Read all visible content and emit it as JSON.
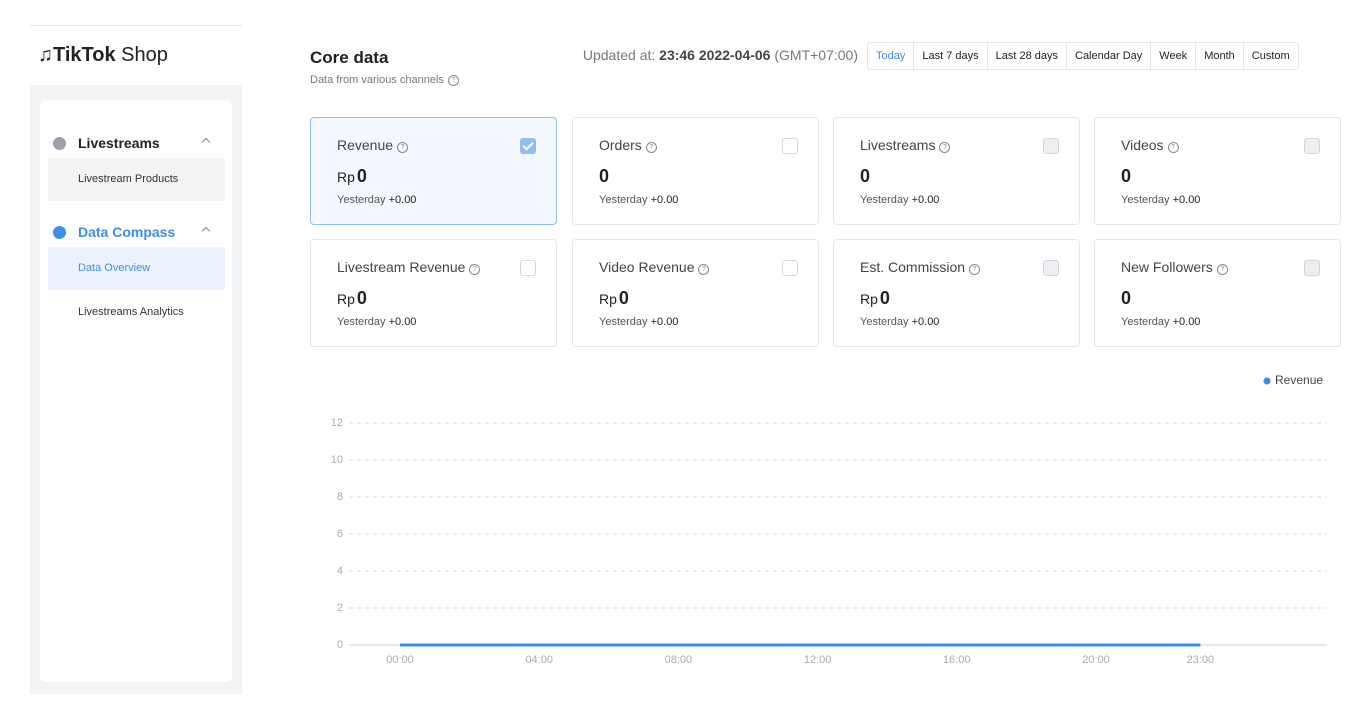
{
  "sidebar": {
    "logo_brand": "TikTok",
    "logo_suffix": "Shop",
    "groups": [
      {
        "label": "Livestreams",
        "icon_color": "#9aa0aa",
        "active": false,
        "items": [
          {
            "label": "Livestream Products",
            "active": false
          }
        ]
      },
      {
        "label": "Data Compass",
        "icon_color": "#3d8ee6",
        "active": true,
        "items": [
          {
            "label": "Data Overview",
            "active": true
          },
          {
            "label": "Livestreams Analytics",
            "active": false
          }
        ]
      }
    ]
  },
  "header": {
    "title": "Core data",
    "subtitle": "Data from various channels",
    "updated_label": "Updated at:",
    "updated_time": "23:46 2022-04-06",
    "timezone": "(GMT+07:00)",
    "tabs": [
      "Today",
      "Last 7 days",
      "Last 28 days",
      "Calendar Day",
      "Week",
      "Month",
      "Custom"
    ],
    "active_tab_index": 0
  },
  "metrics": [
    {
      "label": "Revenue",
      "currency": "Rp",
      "value": 0,
      "comparison_label": "Yesterday",
      "comparison": "+0.00",
      "selected": true
    },
    {
      "label": "Orders",
      "value": 0,
      "comparison_label": "Yesterday",
      "comparison": "+0.00"
    },
    {
      "label": "Livestreams",
      "value": 0,
      "comparison_label": "Yesterday",
      "comparison": "+0.00",
      "disabled": true
    },
    {
      "label": "Videos",
      "value": 0,
      "comparison_label": "Yesterday",
      "comparison": "+0.00",
      "disabled": true
    },
    {
      "label": "Livestream Revenue",
      "currency": "Rp",
      "value": 0,
      "comparison_label": "Yesterday",
      "comparison": "+0.00"
    },
    {
      "label": "Video Revenue",
      "currency": "Rp",
      "value": 0,
      "comparison_label": "Yesterday",
      "comparison": "+0.00"
    },
    {
      "label": "Est. Commission",
      "currency": "Rp",
      "value": 0,
      "comparison_label": "Yesterday",
      "comparison": "+0.00",
      "disabled": true
    },
    {
      "label": "New Followers",
      "value": 0,
      "comparison_label": "Yesterday",
      "comparison": "+0.00",
      "disabled": true
    }
  ],
  "chart_data": {
    "type": "line",
    "categories": [
      "00:00",
      null,
      null,
      null,
      "04:00",
      null,
      null,
      null,
      "08:00",
      null,
      null,
      null,
      "12:00",
      null,
      null,
      null,
      "16:00",
      null,
      null,
      null,
      "20:00",
      null,
      null,
      "23:00"
    ],
    "series": [
      {
        "name": "Revenue",
        "color": "#3d8ee6",
        "values": [
          0,
          0,
          0,
          0,
          0,
          0,
          0,
          0,
          0,
          0,
          0,
          0,
          0,
          0,
          0,
          0,
          0,
          0,
          0,
          0,
          0,
          0,
          0,
          0
        ]
      }
    ],
    "ylim": [
      0,
      12
    ],
    "yticks": [
      0,
      2,
      4,
      6,
      8,
      10,
      12
    ],
    "grid": true,
    "legend": "top-right"
  }
}
